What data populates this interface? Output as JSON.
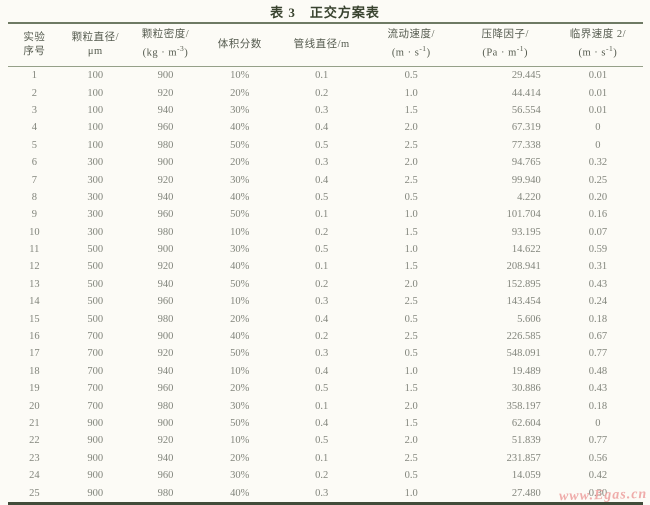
{
  "page": {
    "title": "表 3　正交方案表"
  },
  "table": {
    "columns": [
      {
        "line1": "实验",
        "line2": [
          {
            "t": "序号"
          }
        ]
      },
      {
        "line1": "颗粒直径/",
        "line2": [
          {
            "t": "μm"
          }
        ]
      },
      {
        "line1": "颗粒密度/",
        "line2": [
          {
            "t": "(kg · m"
          },
          {
            "t": "-3",
            "sup": true
          },
          {
            "t": ")"
          }
        ]
      },
      {
        "line1": "体积分数",
        "line2": []
      },
      {
        "line1": "管线直径/m",
        "line2": []
      },
      {
        "line1": "流动速度/",
        "line2": [
          {
            "t": "(m · s"
          },
          {
            "t": "-1",
            "sup": true
          },
          {
            "t": ")"
          }
        ]
      },
      {
        "line1": "压降因子/",
        "line2": [
          {
            "t": "(Pa · m"
          },
          {
            "t": "-1",
            "sup": true
          },
          {
            "t": ")"
          }
        ]
      },
      {
        "line1": "临界速度 2/",
        "line2": [
          {
            "t": "(m · s"
          },
          {
            "t": "-1",
            "sup": true
          },
          {
            "t": ")"
          }
        ]
      }
    ],
    "rows": [
      [
        "1",
        "100",
        "900",
        "10%",
        "0.1",
        "0.5",
        "29.445",
        "0.01"
      ],
      [
        "2",
        "100",
        "920",
        "20%",
        "0.2",
        "1.0",
        "44.414",
        "0.01"
      ],
      [
        "3",
        "100",
        "940",
        "30%",
        "0.3",
        "1.5",
        "56.554",
        "0.01"
      ],
      [
        "4",
        "100",
        "960",
        "40%",
        "0.4",
        "2.0",
        "67.319",
        "0"
      ],
      [
        "5",
        "100",
        "980",
        "50%",
        "0.5",
        "2.5",
        "77.338",
        "0"
      ],
      [
        "6",
        "300",
        "900",
        "20%",
        "0.3",
        "2.0",
        "94.765",
        "0.32"
      ],
      [
        "7",
        "300",
        "920",
        "30%",
        "0.4",
        "2.5",
        "99.940",
        "0.25"
      ],
      [
        "8",
        "300",
        "940",
        "40%",
        "0.5",
        "0.5",
        "4.220",
        "0.20"
      ],
      [
        "9",
        "300",
        "960",
        "50%",
        "0.1",
        "1.0",
        "101.704",
        "0.16"
      ],
      [
        "10",
        "300",
        "980",
        "10%",
        "0.2",
        "1.5",
        "93.195",
        "0.07"
      ],
      [
        "11",
        "500",
        "900",
        "30%",
        "0.5",
        "1.0",
        "14.622",
        "0.59"
      ],
      [
        "12",
        "500",
        "920",
        "40%",
        "0.1",
        "1.5",
        "208.941",
        "0.31"
      ],
      [
        "13",
        "500",
        "940",
        "50%",
        "0.2",
        "2.0",
        "152.895",
        "0.43"
      ],
      [
        "14",
        "500",
        "960",
        "10%",
        "0.3",
        "2.5",
        "143.454",
        "0.24"
      ],
      [
        "15",
        "500",
        "980",
        "20%",
        "0.4",
        "0.5",
        "5.606",
        "0.18"
      ],
      [
        "16",
        "700",
        "900",
        "40%",
        "0.2",
        "2.5",
        "226.585",
        "0.67"
      ],
      [
        "17",
        "700",
        "920",
        "50%",
        "0.3",
        "0.5",
        "548.091",
        "0.77"
      ],
      [
        "18",
        "700",
        "940",
        "10%",
        "0.4",
        "1.0",
        "19.489",
        "0.48"
      ],
      [
        "19",
        "700",
        "960",
        "20%",
        "0.5",
        "1.5",
        "30.886",
        "0.43"
      ],
      [
        "20",
        "700",
        "980",
        "30%",
        "0.1",
        "2.0",
        "358.197",
        "0.18"
      ],
      [
        "21",
        "900",
        "900",
        "50%",
        "0.4",
        "1.5",
        "62.604",
        "0"
      ],
      [
        "22",
        "900",
        "920",
        "10%",
        "0.5",
        "2.0",
        "51.839",
        "0.77"
      ],
      [
        "23",
        "900",
        "940",
        "20%",
        "0.1",
        "2.5",
        "231.857",
        "0.56"
      ],
      [
        "24",
        "900",
        "960",
        "30%",
        "0.2",
        "0.5",
        "14.059",
        "0.42"
      ],
      [
        "25",
        "900",
        "980",
        "40%",
        "0.3",
        "1.0",
        "27.480",
        "0.30"
      ]
    ]
  },
  "watermark": {
    "text": "www.Egas.cn"
  }
}
